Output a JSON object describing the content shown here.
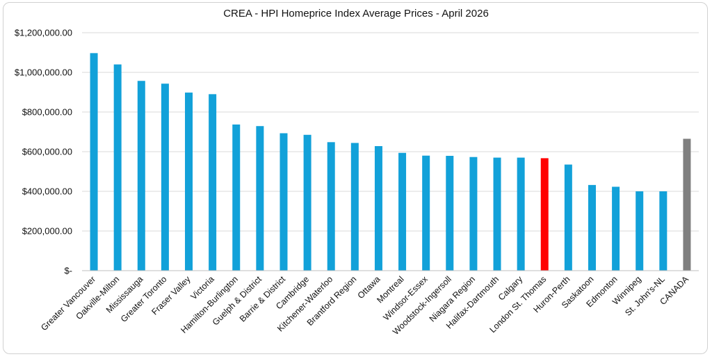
{
  "chart_data": {
    "type": "bar",
    "title": "CREA - HPI Homeprice Index Average Prices - April 2026",
    "xlabel": "",
    "ylabel": "",
    "ylim": [
      0,
      1200000
    ],
    "yticks": [
      {
        "value": 0,
        "label": "$-"
      },
      {
        "value": 200000,
        "label": "$200,000.00"
      },
      {
        "value": 400000,
        "label": "$400,000.00"
      },
      {
        "value": 600000,
        "label": "$600,000.00"
      },
      {
        "value": 800000,
        "label": "$800,000.00"
      },
      {
        "value": 1000000,
        "label": "$1,000,000.00"
      },
      {
        "value": 1200000,
        "label": "$1,200,000.00"
      }
    ],
    "grid": true,
    "legend": "none",
    "categories": [
      "Greater Vancouver",
      "Oakville-Milton",
      "Mississauga",
      "Greater Toronto",
      "Fraser Valley",
      "Victoria",
      "Hamilton-Burlington",
      "Guelph & District",
      "Barrie & District",
      "Cambridge",
      "Kitchener-Waterloo",
      "Brantford Region",
      "Ottawa",
      "Montreal",
      "Windsor-Essex",
      "Woodstock-Ingersoll",
      "Niagara Region",
      "Halifax-Dartmouth",
      "Calgary",
      "London St. Thomas",
      "Huron-Perth",
      "Saskatoon",
      "Edmonton",
      "Winnipeg",
      "St. John's-NL",
      "CANADA"
    ],
    "values": [
      1097000,
      1040000,
      957000,
      943000,
      898000,
      890000,
      737000,
      729000,
      693000,
      685000,
      648000,
      644000,
      628000,
      594000,
      580000,
      579000,
      573000,
      570000,
      570000,
      567000,
      535000,
      432000,
      423000,
      400000,
      400000,
      665000
    ],
    "colors": {
      "default": "#12a1d9",
      "highlight": "#ff0000",
      "national": "#7f7f7f",
      "grid": "#d9d9d9",
      "axis": "#bfbfbf"
    },
    "highlight_category": "London St. Thomas",
    "national_category": "CANADA"
  }
}
